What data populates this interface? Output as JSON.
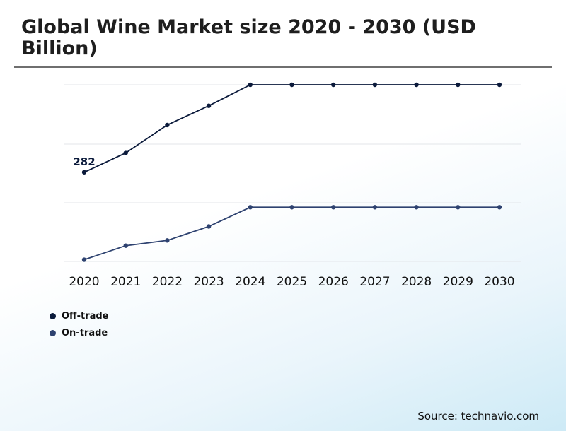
{
  "title": "Global Wine Market size 2020 - 2030 (USD Billion)",
  "source": "Source: technavio.com",
  "colors": {
    "off_trade": "#0b1a3b",
    "on_trade": "#2e4270",
    "grid": "#e3e6ea"
  },
  "chart_data": {
    "type": "line",
    "categories": [
      "2020",
      "2021",
      "2022",
      "2023",
      "2024",
      "2025",
      "2026",
      "2027",
      "2028",
      "2029",
      "2030"
    ],
    "series": [
      {
        "name": "Off-trade",
        "values": [
          282,
          293,
          309,
          320,
          332,
          332,
          332,
          332,
          332,
          332,
          332
        ]
      },
      {
        "name": "On-trade",
        "values": [
          232,
          240,
          243,
          251,
          262,
          262,
          262,
          262,
          262,
          262,
          262
        ]
      }
    ],
    "annotations": [
      {
        "series": 0,
        "index": 0,
        "text": "282"
      }
    ],
    "ylim": [
      231,
      332
    ],
    "grid": true,
    "y_tick_labels": false,
    "legend_position": "bottom-left"
  }
}
